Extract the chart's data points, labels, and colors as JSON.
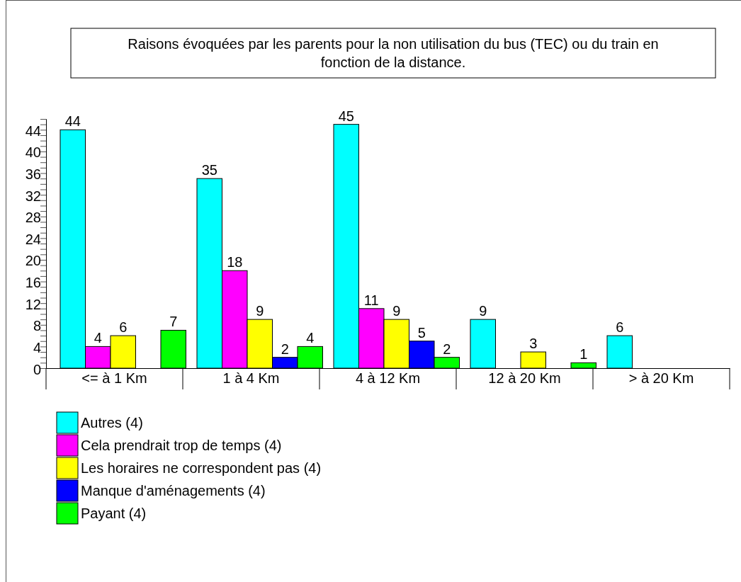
{
  "chart_data": {
    "type": "bar",
    "title": "Raisons évoquées par les parents pour la non utilisation du bus (TEC) ou du train en fonction de la distance.",
    "categories": [
      "<= à 1 Km",
      "1 à 4 Km",
      "4 à 12 Km",
      "12 à 20 Km",
      "> à 20 Km"
    ],
    "series": [
      {
        "name": "Autres (4)",
        "color": "#00ffff",
        "values": [
          44,
          35,
          45,
          9,
          6
        ]
      },
      {
        "name": "Cela prendrait trop de temps (4)",
        "color": "#ff00ff",
        "values": [
          4,
          18,
          11,
          null,
          null
        ]
      },
      {
        "name": "Les horaires ne correspondent pas (4)",
        "color": "#ffff00",
        "values": [
          6,
          9,
          9,
          3,
          null
        ]
      },
      {
        "name": "Manque d'aménagements (4)",
        "color": "#0000ff",
        "values": [
          null,
          2,
          5,
          null,
          null
        ]
      },
      {
        "name": "Payant (4)",
        "color": "#00ff00",
        "values": [
          7,
          4,
          2,
          1,
          null
        ]
      }
    ],
    "ylim": [
      0,
      46
    ],
    "yticks": [
      0,
      {
        "value": 1,
        "label": null
      },
      {
        "value": 2,
        "label": null
      },
      {
        "value": 3,
        "label": null
      },
      4,
      {
        "value": 5,
        "label": null
      },
      {
        "value": 6,
        "label": null
      },
      {
        "value": 7,
        "label": null
      },
      8,
      {
        "value": 9,
        "label": null
      },
      {
        "value": 10,
        "label": null
      },
      {
        "value": 11,
        "label": null
      },
      12,
      {
        "value": 13,
        "label": null
      },
      {
        "value": 14,
        "label": null
      },
      {
        "value": 15,
        "label": null
      },
      16,
      {
        "value": 17,
        "label": null
      },
      {
        "value": 18,
        "label": null
      },
      {
        "value": 19,
        "label": null
      },
      20,
      {
        "value": 21,
        "label": null
      },
      {
        "value": 22,
        "label": null
      },
      {
        "value": 23,
        "label": null
      },
      24,
      {
        "value": 25,
        "label": null
      },
      {
        "value": 26,
        "label": null
      },
      {
        "value": 27,
        "label": null
      },
      28,
      {
        "value": 29,
        "label": null
      },
      {
        "value": 30,
        "label": null
      },
      {
        "value": 31,
        "label": null
      },
      32,
      {
        "value": 33,
        "label": null
      },
      {
        "value": 34,
        "label": null
      },
      {
        "value": 35,
        "label": null
      },
      36,
      {
        "value": 37,
        "label": null
      },
      {
        "value": 38,
        "label": null
      },
      {
        "value": 39,
        "label": null
      },
      40,
      {
        "value": 41,
        "label": null
      },
      {
        "value": 42,
        "label": null
      },
      {
        "value": 43,
        "label": null
      },
      44,
      {
        "value": 45,
        "label": null
      },
      {
        "value": 46,
        "label": null
      }
    ],
    "data_labels": true,
    "grid": false,
    "legend": "bottom left"
  }
}
